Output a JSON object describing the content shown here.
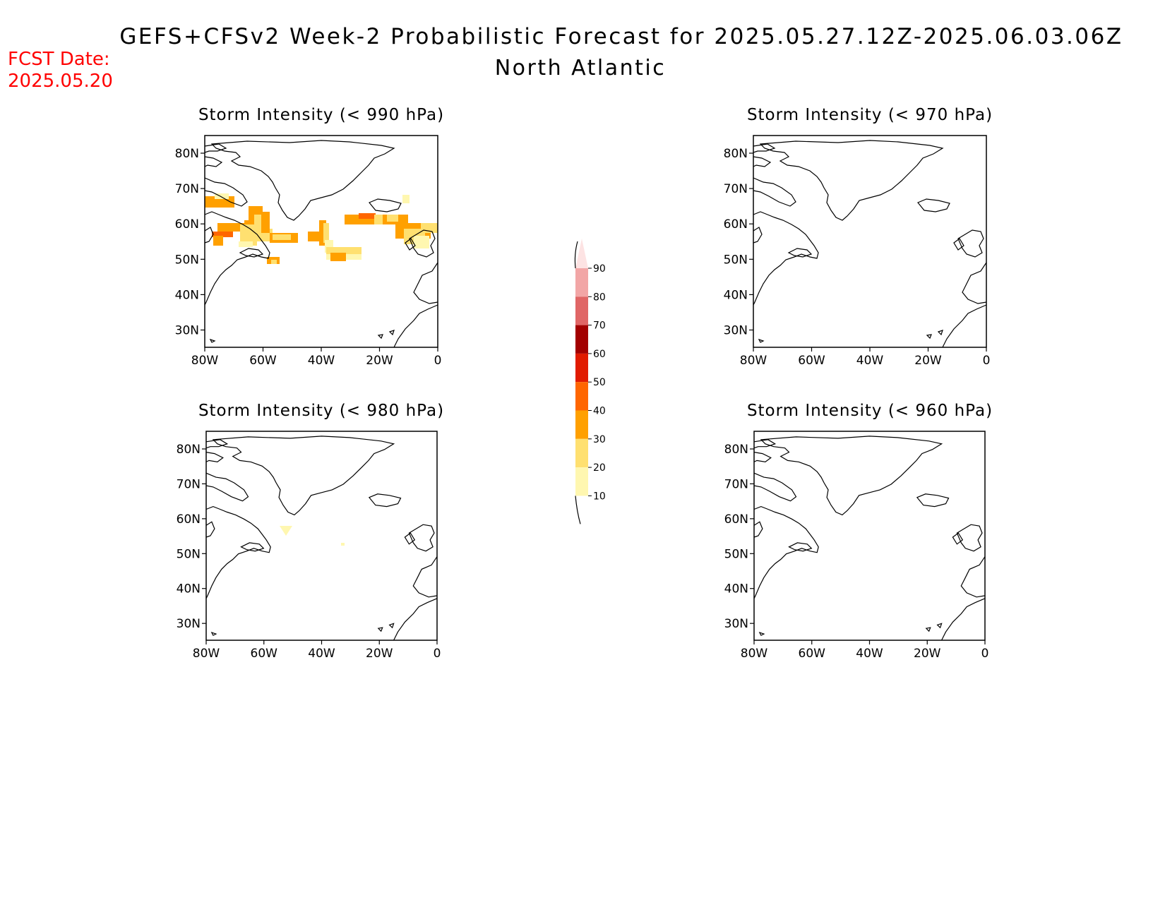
{
  "header": {
    "title": "GEFS+CFSv2 Week-2 Probabilistic Forecast for 2025.05.27.12Z-2025.06.03.06Z",
    "subtitle": "North Atlantic",
    "fcst_label": "FCST Date:",
    "fcst_date": "2025.05.20"
  },
  "axis_labels": {
    "y": [
      "80N",
      "70N",
      "60N",
      "50N",
      "40N",
      "30N"
    ],
    "x": [
      "80W",
      "60W",
      "40W",
      "20W",
      "0"
    ]
  },
  "panels": [
    {
      "title": "Storm Intensity (< 990 hPa)",
      "has_signal": true
    },
    {
      "title": "Storm Intensity (< 970 hPa)",
      "has_signal": false
    },
    {
      "title": "Storm Intensity (< 980 hPa)",
      "has_signal": true
    },
    {
      "title": "Storm Intensity (< 960 hPa)",
      "has_signal": false
    }
  ],
  "colorbar": {
    "labels": [
      "90",
      "80",
      "70",
      "60",
      "50",
      "40",
      "30",
      "20",
      "10"
    ],
    "colors": [
      "#fde3e3",
      "#f2a6a6",
      "#e06666",
      "#a30000",
      "#e11b00",
      "#ff6600",
      "#ffa000",
      "#ffe070",
      "#fff7b0"
    ]
  },
  "colors": {
    "title": "#000000",
    "fcst": "#ff0000",
    "coast": "#000000"
  }
}
